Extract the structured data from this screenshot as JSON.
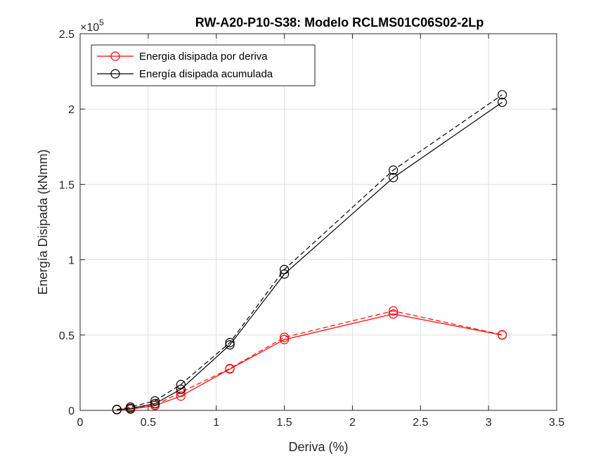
{
  "chart_data": {
    "type": "line",
    "title": "RW-A20-P10-S38: Modelo RCLMS01C06S02-2Lp",
    "xlabel": "Deriva (%)",
    "ylabel": "Energía Disipada (kNmm)",
    "xlim": [
      0,
      3.5
    ],
    "ylim": [
      0,
      250000
    ],
    "x_ticks": [
      0,
      0.5,
      1,
      1.5,
      2,
      2.5,
      3,
      3.5
    ],
    "x_tick_labels": [
      "0",
      "0.5",
      "1",
      "1.5",
      "2",
      "2.5",
      "3",
      "3.5"
    ],
    "y_ticks": [
      0,
      50000,
      100000,
      150000,
      200000,
      250000
    ],
    "y_tick_labels": [
      "0",
      "0.5",
      "1",
      "1.5",
      "2",
      "2.5"
    ],
    "y_exponent_label": "×10",
    "y_exponent": "5",
    "grid": true,
    "legend_position": "top-left",
    "legend": [
      {
        "label": "Energia disipada por deriva",
        "color": "#ff0000"
      },
      {
        "label": "Energía disipada acumulada",
        "color": "#000000"
      }
    ],
    "x": [
      0.27,
      0.37,
      0.55,
      0.74,
      1.1,
      1.5,
      2.3,
      3.1
    ],
    "series": [
      {
        "legend_index": 0,
        "color": "#ff0000",
        "dash": "solid",
        "marker": "circle",
        "values": [
          500,
          800,
          3200,
          9500,
          27500,
          47000,
          64000,
          50000
        ]
      },
      {
        "legend_index": -1,
        "color": "#ff0000",
        "dash": "dashed",
        "marker": "circle",
        "values": [
          600,
          1100,
          3500,
          12000,
          27800,
          48500,
          66000,
          50200
        ]
      },
      {
        "legend_index": 1,
        "color": "#000000",
        "dash": "solid",
        "marker": "circle",
        "values": [
          500,
          1300,
          4500,
          14000,
          43500,
          90500,
          154500,
          204500
        ]
      },
      {
        "legend_index": -1,
        "color": "#000000",
        "dash": "dashed",
        "marker": "circle",
        "values": [
          600,
          2200,
          6300,
          17200,
          45000,
          93500,
          159500,
          209500
        ]
      }
    ]
  }
}
